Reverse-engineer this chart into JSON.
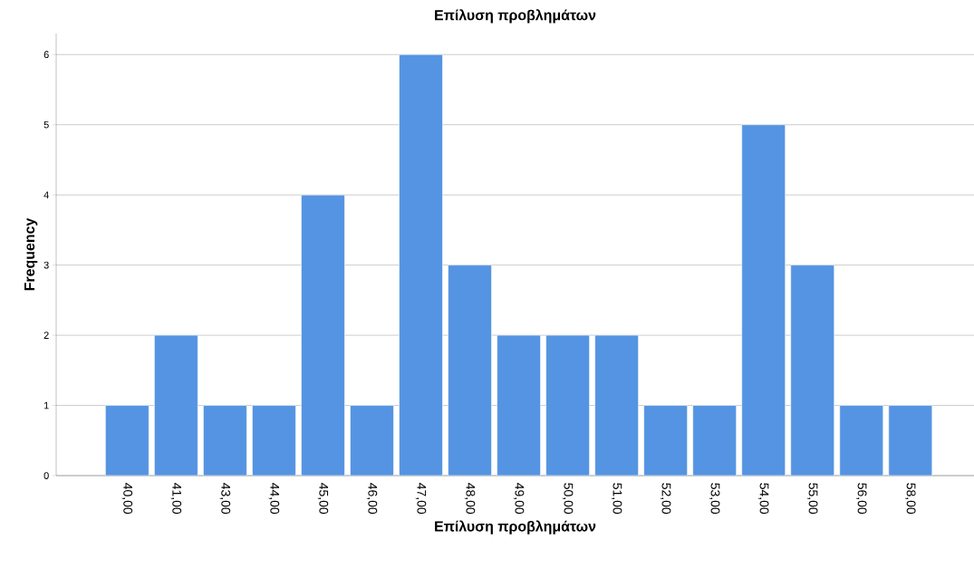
{
  "chart_data": {
    "type": "bar",
    "title": "Επίλυση προβλημάτων",
    "xlabel": "Επίλυση προβλημάτων",
    "ylabel": "Frequency",
    "categories": [
      "40,00",
      "41,00",
      "43,00",
      "44,00",
      "45,00",
      "46,00",
      "47,00",
      "48,00",
      "49,00",
      "50,00",
      "51,00",
      "52,00",
      "53,00",
      "54,00",
      "55,00",
      "56,00",
      "58,00"
    ],
    "values": [
      1,
      2,
      1,
      1,
      4,
      1,
      6,
      3,
      2,
      2,
      2,
      1,
      1,
      5,
      3,
      1,
      1
    ],
    "color": "#5594e2",
    "ylim": [
      0,
      6.3
    ],
    "yticks": [
      0,
      1,
      2,
      3,
      4,
      5,
      6
    ],
    "grid": "y"
  }
}
